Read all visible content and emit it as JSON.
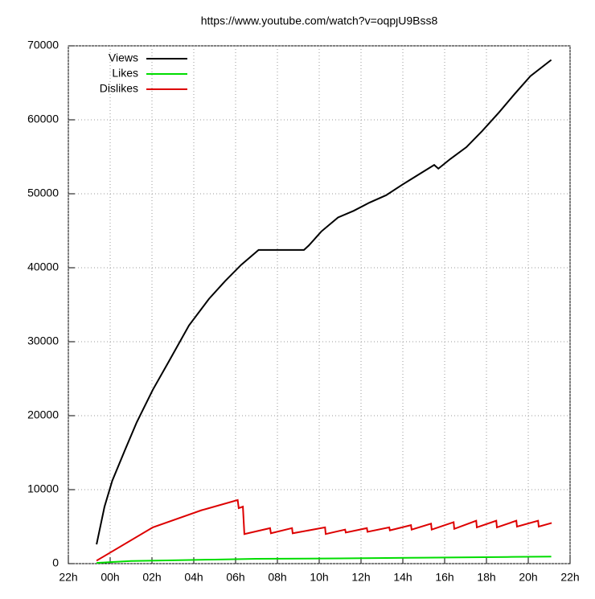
{
  "chart_data": {
    "type": "line",
    "title": "https://www.youtube.com/watch?v=oqpȷU9Bss8",
    "xlim": [
      22,
      46
    ],
    "xticks": [
      {
        "value": 22,
        "label": "22h"
      },
      {
        "value": 24,
        "label": "00h"
      },
      {
        "value": 26,
        "label": "02h"
      },
      {
        "value": 28,
        "label": "04h"
      },
      {
        "value": 30,
        "label": "06h"
      },
      {
        "value": 32,
        "label": "08h"
      },
      {
        "value": 34,
        "label": "10h"
      },
      {
        "value": 36,
        "label": "12h"
      },
      {
        "value": 38,
        "label": "14h"
      },
      {
        "value": 40,
        "label": "16h"
      },
      {
        "value": 42,
        "label": "18h"
      },
      {
        "value": 44,
        "label": "20h"
      },
      {
        "value": 46,
        "label": "22h"
      }
    ],
    "ylim": [
      0,
      70000
    ],
    "yticks": [
      0,
      10000,
      20000,
      30000,
      40000,
      50000,
      60000,
      70000
    ],
    "grid": true,
    "legend": "upper-left",
    "series": [
      {
        "name": "Views",
        "color": "#000000",
        "x": [
          23.35,
          23.73,
          24.1,
          24.7,
          25.27,
          26.04,
          26.8,
          27.77,
          28.73,
          29.5,
          30.27,
          31.1,
          33.27,
          33.5,
          34.1,
          34.9,
          35.65,
          36.4,
          37.2,
          37.96,
          38.7,
          39.5,
          39.7,
          40.27,
          41.04,
          41.8,
          42.6,
          43.35,
          44.1,
          45.1
        ],
        "values": [
          2600,
          7700,
          11200,
          15300,
          19100,
          23500,
          27300,
          32200,
          35800,
          38200,
          40400,
          42400,
          42400,
          43000,
          44900,
          46800,
          47700,
          48800,
          49800,
          51200,
          52500,
          53900,
          53400,
          54700,
          56300,
          58500,
          61000,
          63500,
          65900,
          68100
        ]
      },
      {
        "name": "Likes",
        "color": "#00dd00",
        "x": [
          23.35,
          24,
          25,
          27,
          29,
          31,
          35,
          39,
          43,
          45.1
        ],
        "values": [
          100,
          200,
          350,
          450,
          550,
          650,
          700,
          800,
          900,
          950
        ]
      },
      {
        "name": "Dislikes",
        "color": "#dd0000",
        "x": [
          23.35,
          26.04,
          28.35,
          30.1,
          30.15,
          30.35,
          30.42,
          31.65,
          31.69,
          32.7,
          32.73,
          34.28,
          34.31,
          35.24,
          35.27,
          36.28,
          36.31,
          37.35,
          37.38,
          38.39,
          38.42,
          39.35,
          39.38,
          40.43,
          40.46,
          41.51,
          41.54,
          42.47,
          42.5,
          43.43,
          43.46,
          44.47,
          44.5,
          45.12
        ],
        "values": [
          400,
          4900,
          7200,
          8600,
          7500,
          7700,
          4000,
          4800,
          4100,
          4800,
          4100,
          4900,
          4000,
          4600,
          4200,
          4800,
          4300,
          4900,
          4500,
          5200,
          4600,
          5400,
          4600,
          5600,
          4700,
          5800,
          4900,
          5800,
          4900,
          5800,
          5000,
          5800,
          5000,
          5500
        ]
      }
    ]
  }
}
